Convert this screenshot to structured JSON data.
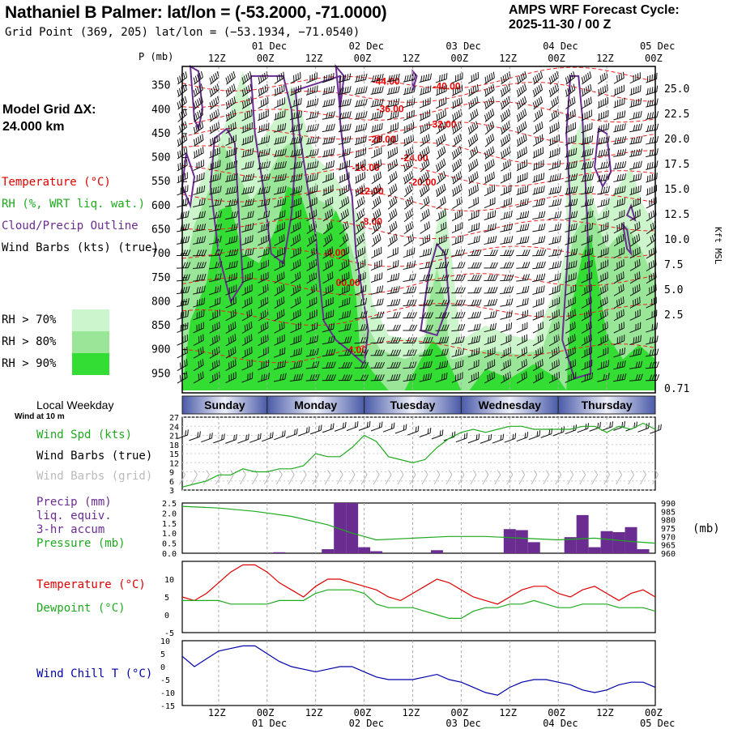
{
  "header": {
    "title": "Nathaniel B Palmer:  lat/lon = (-53.2000, -71.0000)",
    "subtitle": "Grid Point (369, 205) lat/lon = (−53.1934, −71.0540)",
    "cycle_line1": "AMPS WRF Forecast Cycle:",
    "cycle_line2": "2025-11-30 / 00  Z",
    "grid_line1": "Model Grid ΔX:",
    "grid_line2": " 24.000 km"
  },
  "legend": {
    "temperature": "Temperature (°C)",
    "rh": "RH (%, WRT liq. wat.)",
    "cloud": "Cloud/Precip Outline",
    "wind": "Wind Barbs (kts) (true)",
    "rh70": "RH > 70%",
    "rh80": "RH > 80%",
    "rh90": "RH > 90%",
    "colors": {
      "temp": "#dd0000",
      "rh": "#1eaa1e",
      "cloud": "#6a2c91",
      "rh70": "#ccf5cc",
      "rh80": "#99e699",
      "rh90": "#33dd33"
    }
  },
  "side_labels": {
    "weekday": "Local Weekday",
    "wind10": "Wind at 10 m",
    "wspd": "Wind Spd (kts)",
    "wbarb_true": "Wind Barbs (true)",
    "wbarb_grid": "Wind Barbs (grid)",
    "precip1": "Precip (mm)",
    "precip2": "liq. equiv.",
    "precip3": "3-hr accum",
    "pressure": "Pressure (mb)",
    "temp": "Temperature (°C)",
    "dewpoint": "Dewpoint (°C)",
    "windchill": "Wind Chill T (°C)",
    "pressure_unit": "(mb)"
  },
  "time_axis": {
    "hour_labels": [
      "12Z",
      "00Z",
      "12Z",
      "00Z",
      "12Z",
      "00Z",
      "12Z",
      "00Z",
      "12Z",
      "00Z"
    ],
    "hour_values": [
      12,
      24,
      36,
      48,
      60,
      72,
      84,
      96,
      108,
      120
    ],
    "date_labels": [
      "01 Dec",
      "02 Dec",
      "03 Dec",
      "04 Dec",
      "05 Dec"
    ],
    "date_values": [
      24,
      48,
      72,
      96,
      120
    ],
    "range_hours": [
      3,
      120
    ]
  },
  "weekdays": [
    "Sunday",
    "Monday",
    "Tuesday",
    "Wednesday",
    "Thursday"
  ],
  "chart_data": [
    {
      "type": "cross-section",
      "title": "Time-height cross section",
      "ylabel": "P (mb)",
      "y2label": "Kft MSL",
      "pressure_ticks": [
        350,
        400,
        450,
        500,
        550,
        600,
        650,
        700,
        750,
        800,
        850,
        900,
        950
      ],
      "height_ticks": [
        "25.0",
        "22.5",
        "20.0",
        "17.5",
        "15.0",
        "12.5",
        "10.0",
        "7.5",
        "5.0",
        "2.5",
        "0.71"
      ],
      "temp_labels": [
        {
          "t": 50,
          "p": 348,
          "text": "-44.00"
        },
        {
          "t": 65,
          "p": 358,
          "text": "-40.00"
        },
        {
          "t": 51,
          "p": 405,
          "text": "-36.00"
        },
        {
          "t": 64,
          "p": 437,
          "text": "-32.00"
        },
        {
          "t": 49,
          "p": 469,
          "text": "-28.00"
        },
        {
          "t": 57,
          "p": 507,
          "text": "-24.00"
        },
        {
          "t": 45,
          "p": 528,
          "text": "-16.00"
        },
        {
          "t": 59,
          "p": 558,
          "text": "-20.00"
        },
        {
          "t": 46,
          "p": 577,
          "text": "-12.00"
        },
        {
          "t": 47,
          "p": 640,
          "text": "-8.00"
        },
        {
          "t": 38,
          "p": 705,
          "text": "-4.00"
        },
        {
          "t": 41,
          "p": 767,
          "text": "00.00"
        },
        {
          "t": 44,
          "p": 907,
          "text": "4.00"
        }
      ]
    },
    {
      "type": "line",
      "title": "Wind Spd (kts)",
      "ylim": [
        3,
        27
      ],
      "yticks": [
        3,
        6,
        9,
        12,
        15,
        18,
        21,
        24,
        27
      ],
      "x": [
        3,
        6,
        9,
        12,
        15,
        18,
        21,
        24,
        27,
        30,
        33,
        36,
        39,
        42,
        45,
        48,
        51,
        54,
        57,
        60,
        63,
        66,
        69,
        72,
        75,
        78,
        81,
        84,
        87,
        90,
        93,
        96,
        99,
        102,
        105,
        108,
        111,
        114,
        117,
        120
      ],
      "values": [
        4,
        5,
        6,
        8,
        8,
        10,
        9,
        9,
        10,
        10,
        11,
        15,
        14,
        14,
        17,
        21,
        19,
        14,
        13,
        12,
        13,
        17,
        20,
        22,
        23,
        22,
        23,
        24,
        24,
        23,
        23,
        23,
        23,
        24,
        24,
        22,
        24,
        23,
        25,
        23
      ],
      "color": "#1eaa1e"
    },
    {
      "type": "bar",
      "title": "Precip (mm) / Pressure (mb)",
      "ylim": [
        0,
        2.5
      ],
      "yticks": [
        "0.0",
        "0.5",
        "1.0",
        "1.5",
        "2.0",
        "2.5"
      ],
      "y2lim": [
        960,
        990
      ],
      "y2ticks": [
        960,
        965,
        970,
        975,
        980,
        985,
        990
      ],
      "bars": [
        {
          "t": 27,
          "v": 0.05
        },
        {
          "t": 39,
          "v": 0.2
        },
        {
          "t": 42,
          "v": 2.5
        },
        {
          "t": 45,
          "v": 2.5
        },
        {
          "t": 48,
          "v": 0.3
        },
        {
          "t": 51,
          "v": 0.1
        },
        {
          "t": 66,
          "v": 0.15
        },
        {
          "t": 84,
          "v": 1.2
        },
        {
          "t": 87,
          "v": 1.15
        },
        {
          "t": 90,
          "v": 0.55
        },
        {
          "t": 99,
          "v": 0.8
        },
        {
          "t": 102,
          "v": 1.9
        },
        {
          "t": 105,
          "v": 0.3
        },
        {
          "t": 108,
          "v": 1.1
        },
        {
          "t": 111,
          "v": 1.05
        },
        {
          "t": 114,
          "v": 1.3
        },
        {
          "t": 117,
          "v": 0.2
        }
      ],
      "pressure_x": [
        3,
        12,
        21,
        30,
        39,
        45,
        51,
        60,
        69,
        78,
        87,
        96,
        105,
        114,
        120
      ],
      "pressure_values": [
        988,
        987,
        985,
        982,
        977,
        972,
        968,
        969,
        970,
        970,
        969,
        968,
        969,
        967,
        966
      ],
      "bar_color": "#6a2c91",
      "line_color": "#1eaa1e"
    },
    {
      "type": "line",
      "title": "Temperature / Dewpoint (°C)",
      "ylim": [
        -5,
        15
      ],
      "yticks": [
        -5,
        0,
        5,
        10
      ],
      "x": [
        3,
        6,
        9,
        12,
        15,
        18,
        21,
        24,
        27,
        30,
        33,
        36,
        39,
        42,
        45,
        48,
        51,
        54,
        57,
        60,
        63,
        66,
        69,
        72,
        75,
        78,
        81,
        84,
        87,
        90,
        93,
        96,
        99,
        102,
        105,
        108,
        111,
        114,
        117,
        120
      ],
      "series": [
        {
          "name": "Temperature",
          "color": "#dd0000",
          "values": [
            5,
            4,
            6,
            9,
            12,
            14,
            14,
            12,
            9,
            7,
            5,
            8,
            10,
            10,
            9,
            8,
            7,
            5,
            4,
            6,
            8,
            10,
            9,
            7,
            5,
            4,
            3,
            5,
            7,
            8,
            8,
            6,
            5,
            7,
            8,
            6,
            4,
            6,
            7,
            5
          ]
        },
        {
          "name": "Dewpoint",
          "color": "#1eaa1e",
          "values": [
            4,
            4,
            4,
            4,
            3,
            3,
            3,
            3,
            4,
            4,
            4,
            6,
            7,
            7,
            7,
            6,
            3,
            2,
            2,
            2,
            1,
            0,
            -1,
            -1,
            1,
            2,
            2,
            3,
            3,
            4,
            3,
            2,
            2,
            3,
            3,
            3,
            2,
            2,
            2,
            1
          ]
        }
      ]
    },
    {
      "type": "line",
      "title": "Wind Chill T (°C)",
      "ylim": [
        -15,
        10
      ],
      "yticks": [
        -15,
        -10,
        -5,
        0,
        5,
        10
      ],
      "x": [
        3,
        6,
        9,
        12,
        15,
        18,
        21,
        24,
        27,
        30,
        33,
        36,
        39,
        42,
        45,
        48,
        51,
        54,
        57,
        60,
        63,
        66,
        69,
        72,
        75,
        78,
        81,
        84,
        87,
        90,
        93,
        96,
        99,
        102,
        105,
        108,
        111,
        114,
        117,
        120
      ],
      "values": [
        4,
        0,
        3,
        6,
        7,
        8,
        8,
        5,
        2,
        0,
        -1,
        -2,
        -1,
        0,
        0,
        -2,
        -4,
        -5,
        -5,
        -5,
        -4,
        -3,
        -5,
        -6,
        -8,
        -10,
        -11,
        -8,
        -6,
        -5,
        -5,
        -6,
        -7,
        -9,
        -10,
        -9,
        -7,
        -6,
        -6,
        -8
      ],
      "color": "#0000aa"
    }
  ]
}
